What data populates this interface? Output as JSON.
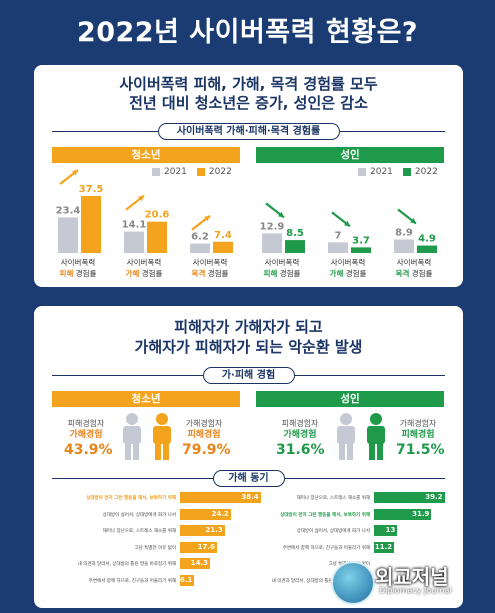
{
  "title": "2022년 사이버폭력 현황은?",
  "section1": {
    "headline_1": "사이버폭력 피해, 가해, 목격 경험률 모두",
    "headline_2": "전년 대비 청소년은 증가, 성인은 감소",
    "pill": "사이버폭력 가해·피해·목격 경험률",
    "youth_label": "청소년",
    "adult_label": "성인",
    "legend_2021": "2021",
    "legend_2022": "2022",
    "bar_prefix": "사이버폭력",
    "suffix": "경험률",
    "kinds": [
      "피해",
      "가해",
      "목격"
    ]
  },
  "section2": {
    "headline_1": "피해자가 가해자가 되고",
    "headline_2": "가해자가 피해자가 되는 악순환 발생",
    "pill_1": "가·피해 경험",
    "youth_label": "청소년",
    "adult_label": "성인",
    "victim_line1": "피해경험자",
    "victim_line2": "가해경험",
    "offender_line1": "가해경험자",
    "offender_line2": "피해경험",
    "youth_victim_pct": "43.9%",
    "youth_offender_pct": "79.9%",
    "adult_victim_pct": "31.6%",
    "adult_offender_pct": "71.5%",
    "pill_2": "가해 동기"
  },
  "colors": {
    "navy": "#1a3c73",
    "orange": "#f3a31c",
    "green": "#1f9a4a",
    "gray": "#c4c9d4"
  },
  "chart_data": [
    {
      "type": "bar",
      "title": "청소년",
      "categories": [
        "사이버폭력 피해 경험률",
        "사이버폭력 가해 경험률",
        "사이버폭력 목격 경험률"
      ],
      "series": [
        {
          "name": "2021",
          "values": [
            23.4,
            14.1,
            6.2
          ]
        },
        {
          "name": "2022",
          "values": [
            37.5,
            20.6,
            7.4
          ]
        }
      ]
    },
    {
      "type": "bar",
      "title": "성인",
      "categories": [
        "사이버폭력 피해 경험률",
        "사이버폭력 가해 경험률",
        "사이버폭력 목격 경험률"
      ],
      "series": [
        {
          "name": "2021",
          "values": [
            12.9,
            7.0,
            8.9
          ]
        },
        {
          "name": "2022",
          "values": [
            8.5,
            3.7,
            4.9
          ]
        }
      ]
    },
    {
      "type": "bar",
      "title": "가해 동기 - 청소년",
      "categories": [
        "상대방이 먼저 그런 행동을 해서, 보복하기 위해",
        "상대방이 싫어서, 상대방에게 화가 나서",
        "재미나 장난으로, 스트레스 해소를 위해",
        "그냥 특별한 이유 없이",
        "내 의견과 달라서, 상대방의 틀린 말을 바로잡기 위해",
        "주변에서 함께 하므로, 친구들과 어울리기 위해"
      ],
      "values": [
        38.4,
        24.2,
        21.3,
        17.6,
        14.3,
        6.1
      ]
    },
    {
      "type": "bar",
      "title": "가해 동기 - 성인",
      "categories": [
        "재미나 장난으로, 스트레스 해소를 위해",
        "상대방이 먼저 그런 행동을 해서, 보복하기 위해",
        "상대방이 싫어서, 상대방에게 화가 나서",
        "주변에서 함께 하므로, 친구들과 어울리기 위해",
        "그냥 특별한 이유 없이",
        "내 의견과 달라서, 상대방의 틀린 말을 바로잡기 위해"
      ],
      "values": [
        39.2,
        31.9,
        13.0,
        11.2,
        null,
        null
      ]
    }
  ],
  "watermark": {
    "name": "외교저널",
    "sub": "Diplomacy Journal"
  }
}
